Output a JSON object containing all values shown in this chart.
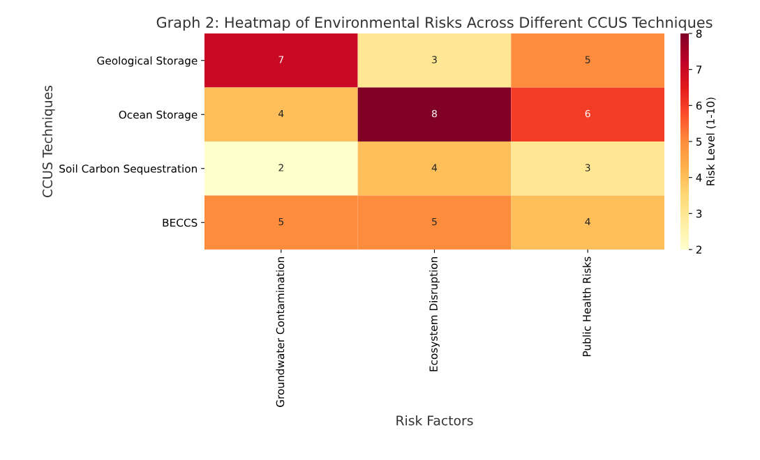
{
  "chart_data": {
    "type": "heatmap",
    "title": "Graph 2: Heatmap of Environmental Risks Across Different CCUS Techniques",
    "xlabel": "Risk Factors",
    "ylabel": "CCUS Techniques",
    "clabel": "Risk Level (1-10)",
    "categories": [
      "Groundwater Contamination",
      "Ecosystem Disruption",
      "Public Health Risks"
    ],
    "y_categories": [
      "Geological Storage",
      "Ocean Storage",
      "Soil Carbon Sequestration",
      "BECCS"
    ],
    "cells": [
      [
        7,
        3,
        5
      ],
      [
        4,
        8,
        6
      ],
      [
        2,
        4,
        3
      ],
      [
        5,
        5,
        4
      ]
    ],
    "clim": [
      2,
      8
    ],
    "cticks": [
      2,
      3,
      4,
      5,
      6,
      7,
      8
    ],
    "data_labels": true
  }
}
